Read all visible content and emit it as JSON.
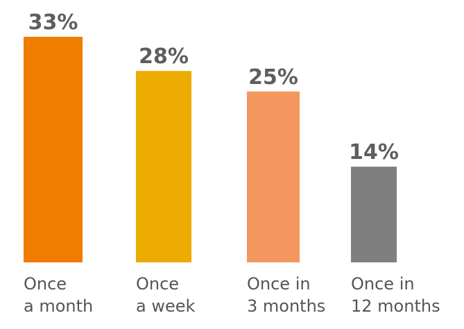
{
  "chart_data": {
    "type": "bar",
    "categories": [
      [
        "Once",
        "a month"
      ],
      [
        "Once",
        "a week"
      ],
      [
        "Once in",
        "3 months"
      ],
      [
        "Once in",
        "12 months"
      ]
    ],
    "values": [
      33,
      28,
      25,
      14
    ],
    "value_labels": [
      "33%",
      "28%",
      "25%",
      "14%"
    ],
    "colors": [
      "#f07d00",
      "#ecab00",
      "#f4975f",
      "#7f7f80"
    ],
    "ylim": [
      0,
      33
    ],
    "grid": false,
    "legend": "none"
  }
}
